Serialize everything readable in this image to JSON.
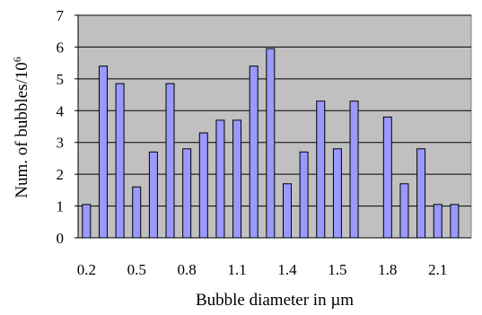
{
  "chart_data": {
    "type": "bar",
    "xlabel": "Bubble diameter in µm",
    "ylabel_main": "Num. of bubbles/10",
    "ylabel_superscript": "6",
    "ylim": [
      0,
      7
    ],
    "yticks": [
      "0",
      "1",
      "2",
      "3",
      "4",
      "5",
      "6",
      "7"
    ],
    "xtick_labels": [
      "0.2",
      "0.5",
      "0.8",
      "1.1",
      "1.4",
      "1.5",
      "1.8",
      "2.1"
    ],
    "grid": "horizontal",
    "plot_background": "#c0c0c0",
    "bar_fill": "#9999ff",
    "bar_stroke": "#000000",
    "values": [
      1.05,
      5.4,
      4.85,
      1.6,
      2.7,
      4.85,
      2.8,
      3.3,
      3.7,
      3.7,
      5.4,
      5.95,
      1.7,
      2.7,
      4.3,
      2.8,
      4.3,
      null,
      3.8,
      1.7,
      2.8,
      1.05,
      1.05
    ]
  }
}
